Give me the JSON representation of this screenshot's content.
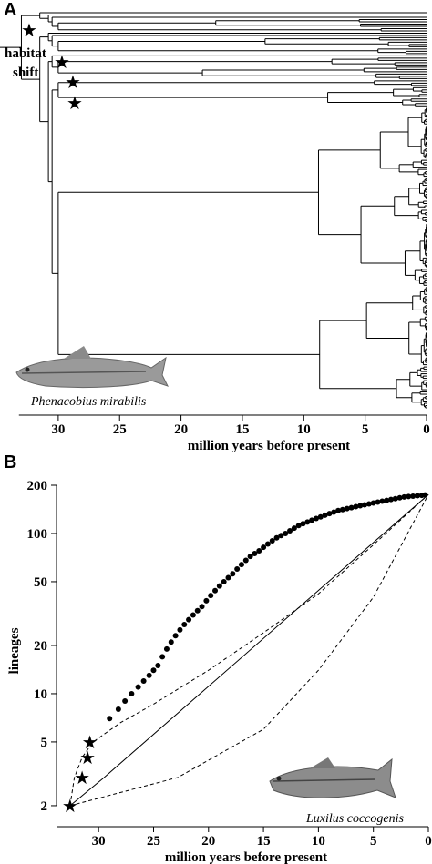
{
  "panels": {
    "a_letter": "A",
    "b_letter": "B"
  },
  "tree_panel": {
    "annotation_line1": "habitat",
    "annotation_line2": "shift",
    "fish_caption": "Phenacobius mirabilis",
    "star_symbol": "★",
    "n_stars": 4
  },
  "ltt_panel": {
    "fish_caption": "Luxilus coccogenis",
    "star_symbol": "★"
  },
  "chart_data": [
    {
      "type": "tree",
      "xlabel": "million years before present",
      "xticks": [
        30,
        25,
        20,
        15,
        10,
        5,
        0
      ],
      "xlim": [
        34,
        0
      ],
      "tip_count": 175,
      "habitat_shift_nodes_mya": [
        33.0,
        31.5,
        30.8,
        30.5
      ]
    },
    {
      "type": "scatter",
      "xlabel": "million years before present",
      "ylabel": "lineages",
      "xticks": [
        30,
        25,
        20,
        15,
        10,
        5,
        0
      ],
      "yticks": [
        2,
        5,
        10,
        20,
        50,
        100,
        200
      ],
      "xlim": [
        33,
        0
      ],
      "ylim": [
        1.8,
        200
      ],
      "y_scale": "log",
      "series": [
        {
          "name": "",
          "style": "filled-circles",
          "x": [
            29.0,
            28.2,
            27.6,
            27.0,
            26.4,
            25.9,
            25.4,
            25.0,
            24.6,
            24.2,
            23.8,
            23.4,
            23.0,
            22.6,
            22.2,
            21.8,
            21.4,
            21.0,
            20.6,
            20.2,
            19.8,
            19.4,
            19.0,
            18.6,
            18.2,
            17.8,
            17.4,
            17.0,
            16.6,
            16.2,
            15.8,
            15.4,
            15.0,
            14.6,
            14.2,
            13.8,
            13.4,
            13.0,
            12.6,
            12.2,
            11.8,
            11.4,
            11.0,
            10.6,
            10.2,
            9.8,
            9.4,
            9.0,
            8.6,
            8.2,
            7.8,
            7.4,
            7.0,
            6.6,
            6.2,
            5.8,
            5.4,
            5.0,
            4.6,
            4.2,
            3.8,
            3.4,
            3.0,
            2.6,
            2.2,
            1.8,
            1.4,
            1.0,
            0.6,
            0.3
          ],
          "y": [
            7,
            8,
            9,
            10,
            11,
            12,
            13,
            14,
            15,
            17,
            19,
            21,
            23,
            25,
            27,
            29,
            31,
            33,
            35,
            38,
            41,
            44,
            47,
            50,
            53,
            56,
            60,
            64,
            68,
            72,
            75,
            78,
            82,
            86,
            90,
            94,
            97,
            100,
            104,
            108,
            112,
            115,
            118,
            121,
            124,
            127,
            130,
            133,
            136,
            139,
            141,
            143,
            145,
            147,
            149,
            151,
            153,
            155,
            157,
            159,
            161,
            163,
            165,
            167,
            169,
            170,
            171,
            172,
            173,
            174
          ]
        },
        {
          "name": "",
          "style": "stars",
          "x": [
            32.6,
            31.5,
            31.0,
            30.8
          ],
          "y": [
            2,
            3,
            4,
            5
          ]
        },
        {
          "name": "",
          "style": "solid-line",
          "x": [
            32.6,
            29.5,
            0
          ],
          "y": [
            2,
            3,
            175
          ]
        },
        {
          "name": "",
          "style": "dashed-line",
          "x": [
            32.6,
            32.2,
            31.5,
            30.5,
            28.0,
            25.0,
            20.0,
            15.0,
            10.0,
            5.0,
            0
          ],
          "y": [
            2,
            3,
            4,
            5,
            6.6,
            8.6,
            14,
            24,
            42,
            85,
            175
          ]
        },
        {
          "name": "",
          "style": "dashed-line",
          "x": [
            32.6,
            22.8,
            15.0,
            10.0,
            5.0,
            0
          ],
          "y": [
            2,
            3,
            6,
            14,
            40,
            175
          ]
        }
      ]
    }
  ]
}
